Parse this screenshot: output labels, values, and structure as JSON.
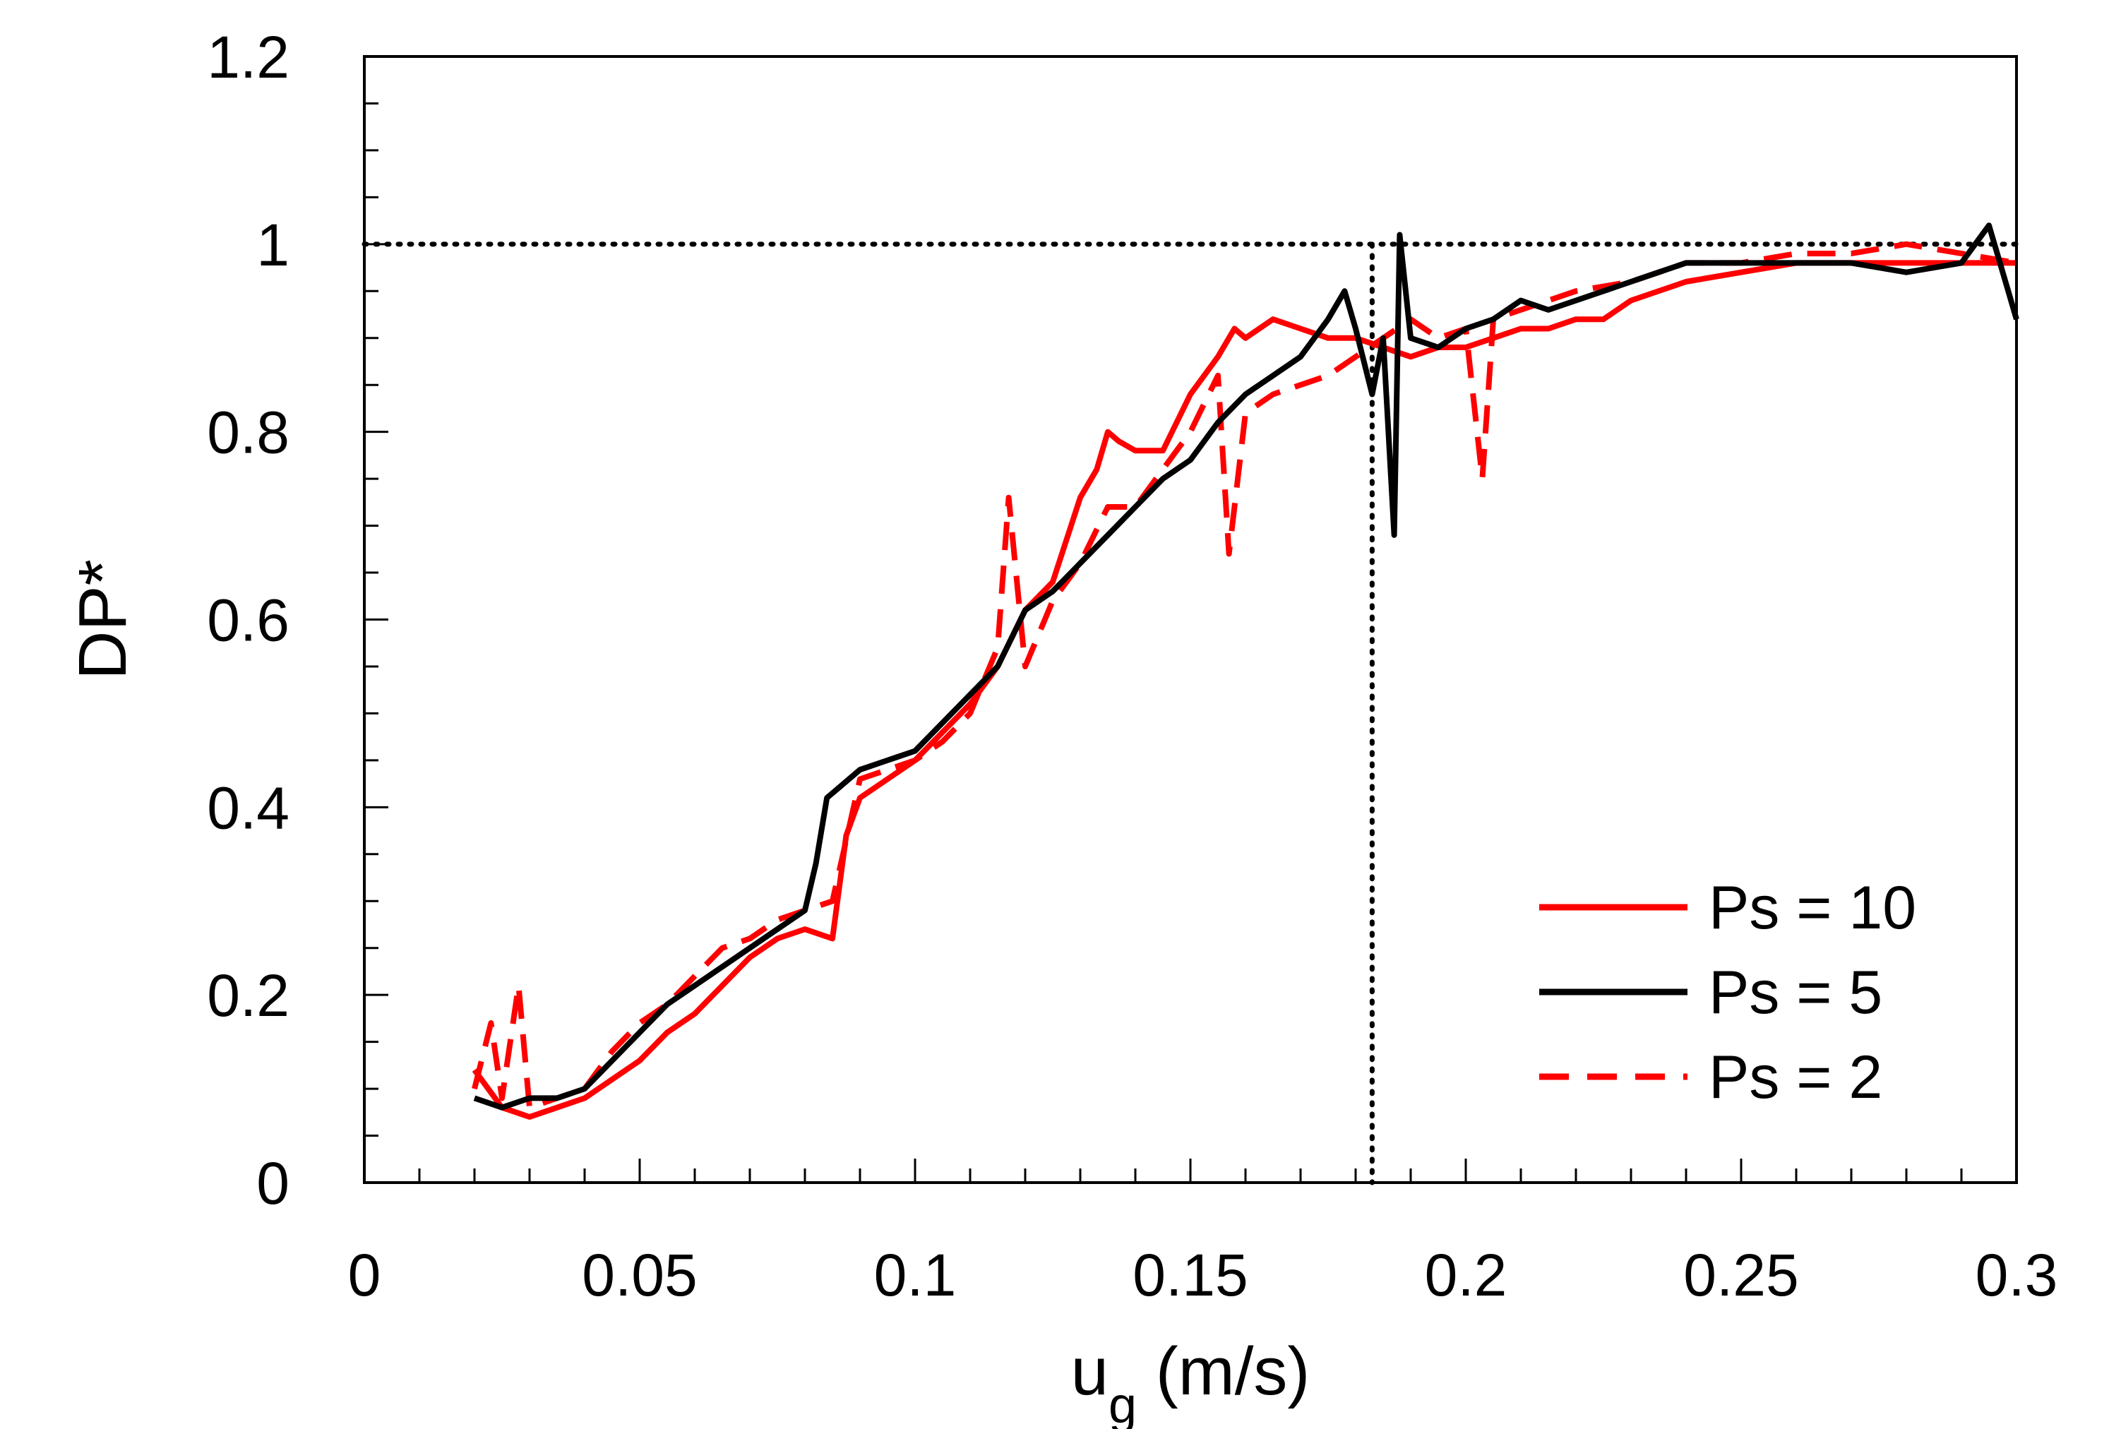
{
  "chart_data": {
    "type": "line",
    "title": "",
    "xlabel_main": "u",
    "xlabel_sub": "g",
    "xlabel_unit": " (m/s)",
    "ylabel": "DP*",
    "xlim": [
      0,
      0.3
    ],
    "ylim": [
      0,
      1.2
    ],
    "xticks": [
      0,
      0.05,
      0.1,
      0.15,
      0.2,
      0.25,
      0.3
    ],
    "xtick_labels": [
      "0",
      "0.05",
      "0.1",
      "0.15",
      "0.2",
      "0.25",
      "0.3"
    ],
    "yticks": [
      0,
      0.2,
      0.4,
      0.6,
      0.8,
      1.0,
      1.2
    ],
    "ytick_labels": [
      "0",
      "0.2",
      "0.4",
      "0.6",
      "0.8",
      "1",
      "1.2"
    ],
    "x_minor_step": 0.01,
    "y_minor_step": 0.05,
    "grid": false,
    "legend_position": "bottom-right",
    "reference_lines": {
      "horizontal_y": 1.0,
      "vertical_x": 0.183,
      "style": "dotted",
      "color": "#000000"
    },
    "series": [
      {
        "name": "Ps = 10",
        "color": "#ff0000",
        "dash": "solid",
        "x": [
          0.02,
          0.025,
          0.03,
          0.035,
          0.04,
          0.045,
          0.05,
          0.055,
          0.06,
          0.065,
          0.07,
          0.075,
          0.08,
          0.085,
          0.0875,
          0.09,
          0.095,
          0.1,
          0.105,
          0.11,
          0.115,
          0.12,
          0.125,
          0.13,
          0.133,
          0.135,
          0.137,
          0.14,
          0.145,
          0.15,
          0.155,
          0.158,
          0.16,
          0.165,
          0.17,
          0.175,
          0.18,
          0.185,
          0.19,
          0.195,
          0.2,
          0.205,
          0.21,
          0.215,
          0.22,
          0.225,
          0.23,
          0.24,
          0.25,
          0.26,
          0.27,
          0.28,
          0.29,
          0.3
        ],
        "y": [
          0.12,
          0.08,
          0.07,
          0.08,
          0.09,
          0.11,
          0.13,
          0.16,
          0.18,
          0.21,
          0.24,
          0.26,
          0.27,
          0.26,
          0.37,
          0.41,
          0.43,
          0.45,
          0.48,
          0.51,
          0.55,
          0.61,
          0.64,
          0.73,
          0.76,
          0.8,
          0.79,
          0.78,
          0.78,
          0.84,
          0.88,
          0.91,
          0.9,
          0.92,
          0.91,
          0.9,
          0.9,
          0.89,
          0.88,
          0.89,
          0.89,
          0.9,
          0.91,
          0.91,
          0.92,
          0.92,
          0.94,
          0.96,
          0.97,
          0.98,
          0.98,
          0.98,
          0.98,
          0.98
        ]
      },
      {
        "name": "Ps = 5",
        "color": "#000000",
        "dash": "solid",
        "x": [
          0.02,
          0.025,
          0.03,
          0.035,
          0.04,
          0.045,
          0.05,
          0.055,
          0.06,
          0.065,
          0.07,
          0.075,
          0.08,
          0.082,
          0.084,
          0.086,
          0.09,
          0.095,
          0.1,
          0.105,
          0.11,
          0.115,
          0.12,
          0.125,
          0.13,
          0.135,
          0.14,
          0.145,
          0.15,
          0.155,
          0.16,
          0.165,
          0.17,
          0.175,
          0.178,
          0.18,
          0.183,
          0.185,
          0.187,
          0.188,
          0.19,
          0.195,
          0.2,
          0.205,
          0.21,
          0.215,
          0.22,
          0.225,
          0.23,
          0.24,
          0.25,
          0.26,
          0.27,
          0.28,
          0.29,
          0.295,
          0.3
        ],
        "y": [
          0.09,
          0.08,
          0.09,
          0.09,
          0.1,
          0.13,
          0.16,
          0.19,
          0.21,
          0.23,
          0.25,
          0.27,
          0.29,
          0.34,
          0.41,
          0.42,
          0.44,
          0.45,
          0.46,
          0.49,
          0.52,
          0.55,
          0.61,
          0.63,
          0.66,
          0.69,
          0.72,
          0.75,
          0.77,
          0.81,
          0.84,
          0.86,
          0.88,
          0.92,
          0.95,
          0.91,
          0.84,
          0.9,
          0.69,
          1.01,
          0.9,
          0.89,
          0.91,
          0.92,
          0.94,
          0.93,
          0.94,
          0.95,
          0.96,
          0.98,
          0.98,
          0.98,
          0.98,
          0.97,
          0.98,
          1.02,
          0.92
        ]
      },
      {
        "name": "Ps = 2",
        "color": "#ff0000",
        "dash": "dashed",
        "x": [
          0.02,
          0.023,
          0.025,
          0.028,
          0.03,
          0.035,
          0.04,
          0.045,
          0.05,
          0.055,
          0.06,
          0.065,
          0.07,
          0.075,
          0.08,
          0.085,
          0.09,
          0.095,
          0.1,
          0.105,
          0.11,
          0.115,
          0.117,
          0.12,
          0.125,
          0.13,
          0.135,
          0.14,
          0.145,
          0.15,
          0.155,
          0.157,
          0.16,
          0.165,
          0.17,
          0.175,
          0.18,
          0.185,
          0.19,
          0.195,
          0.2,
          0.203,
          0.205,
          0.21,
          0.22,
          0.23,
          0.24,
          0.25,
          0.26,
          0.27,
          0.28,
          0.29,
          0.3
        ],
        "y": [
          0.1,
          0.17,
          0.09,
          0.21,
          0.08,
          0.09,
          0.1,
          0.14,
          0.17,
          0.19,
          0.22,
          0.25,
          0.26,
          0.28,
          0.29,
          0.3,
          0.43,
          0.44,
          0.45,
          0.47,
          0.5,
          0.57,
          0.73,
          0.55,
          0.62,
          0.66,
          0.72,
          0.72,
          0.76,
          0.8,
          0.86,
          0.67,
          0.82,
          0.84,
          0.85,
          0.86,
          0.88,
          0.9,
          0.92,
          0.9,
          0.91,
          0.75,
          0.92,
          0.93,
          0.95,
          0.96,
          0.98,
          0.98,
          0.99,
          0.99,
          1.0,
          0.99,
          0.98
        ]
      }
    ]
  }
}
